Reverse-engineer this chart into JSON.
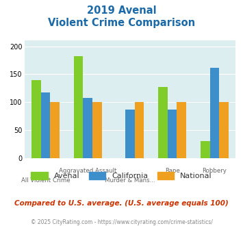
{
  "title_line1": "2019 Avenal",
  "title_line2": "Violent Crime Comparison",
  "categories": [
    "All Violent Crime",
    "Aggravated Assault",
    "Murder & Mans...",
    "Rape",
    "Robbery"
  ],
  "series": {
    "Avenal": [
      140,
      182,
      0,
      127,
      30
    ],
    "California": [
      118,
      108,
      87,
      87,
      162
    ],
    "National": [
      100,
      100,
      100,
      100,
      100
    ]
  },
  "colors": {
    "Avenal": "#80cc28",
    "California": "#3d8fcc",
    "National": "#f0a020"
  },
  "ylim": [
    0,
    210
  ],
  "yticks": [
    0,
    50,
    100,
    150,
    200
  ],
  "bg_color": "#ddeef0",
  "fig_bg": "#ffffff",
  "note": "Compared to U.S. average. (U.S. average equals 100)",
  "footer": "© 2025 CityRating.com - https://www.cityrating.com/crime-statistics/",
  "title_color": "#1a6aaa",
  "note_color": "#cc3300",
  "footer_color": "#888888",
  "bar_width": 0.22
}
